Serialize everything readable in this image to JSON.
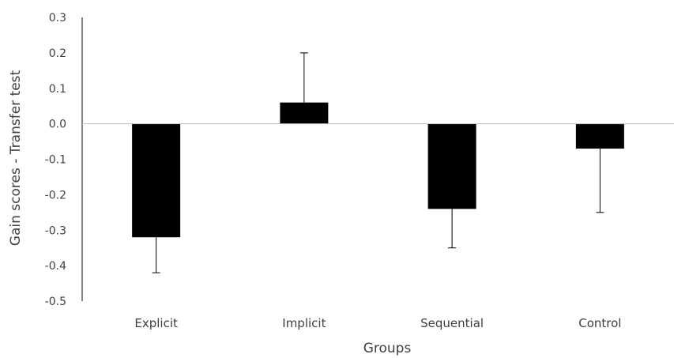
{
  "chart_data": {
    "type": "bar",
    "categories": [
      "Explicit",
      "Implicit",
      "Sequential",
      "Control"
    ],
    "values": [
      -0.32,
      0.06,
      -0.24,
      -0.07
    ],
    "error_bars": [
      {
        "direction": "down",
        "end": -0.42
      },
      {
        "direction": "up",
        "end": 0.2
      },
      {
        "direction": "down",
        "end": -0.35
      },
      {
        "direction": "down",
        "end": -0.25
      }
    ],
    "xlabel": "Groups",
    "ylabel": "Gain scores - Transfer test",
    "ylim": [
      -0.5,
      0.3
    ],
    "yticks": [
      "0.3",
      "0.2",
      "0.1",
      "0.0",
      "-0.1",
      "-0.2",
      "-0.3",
      "-0.4",
      "-0.5"
    ],
    "ytick_values": [
      0.3,
      0.2,
      0.1,
      0.0,
      -0.1,
      -0.2,
      -0.3,
      -0.4,
      -0.5
    ],
    "bar_color": "#000000",
    "axis_color": "#000000",
    "grid": false,
    "legend": "none"
  }
}
